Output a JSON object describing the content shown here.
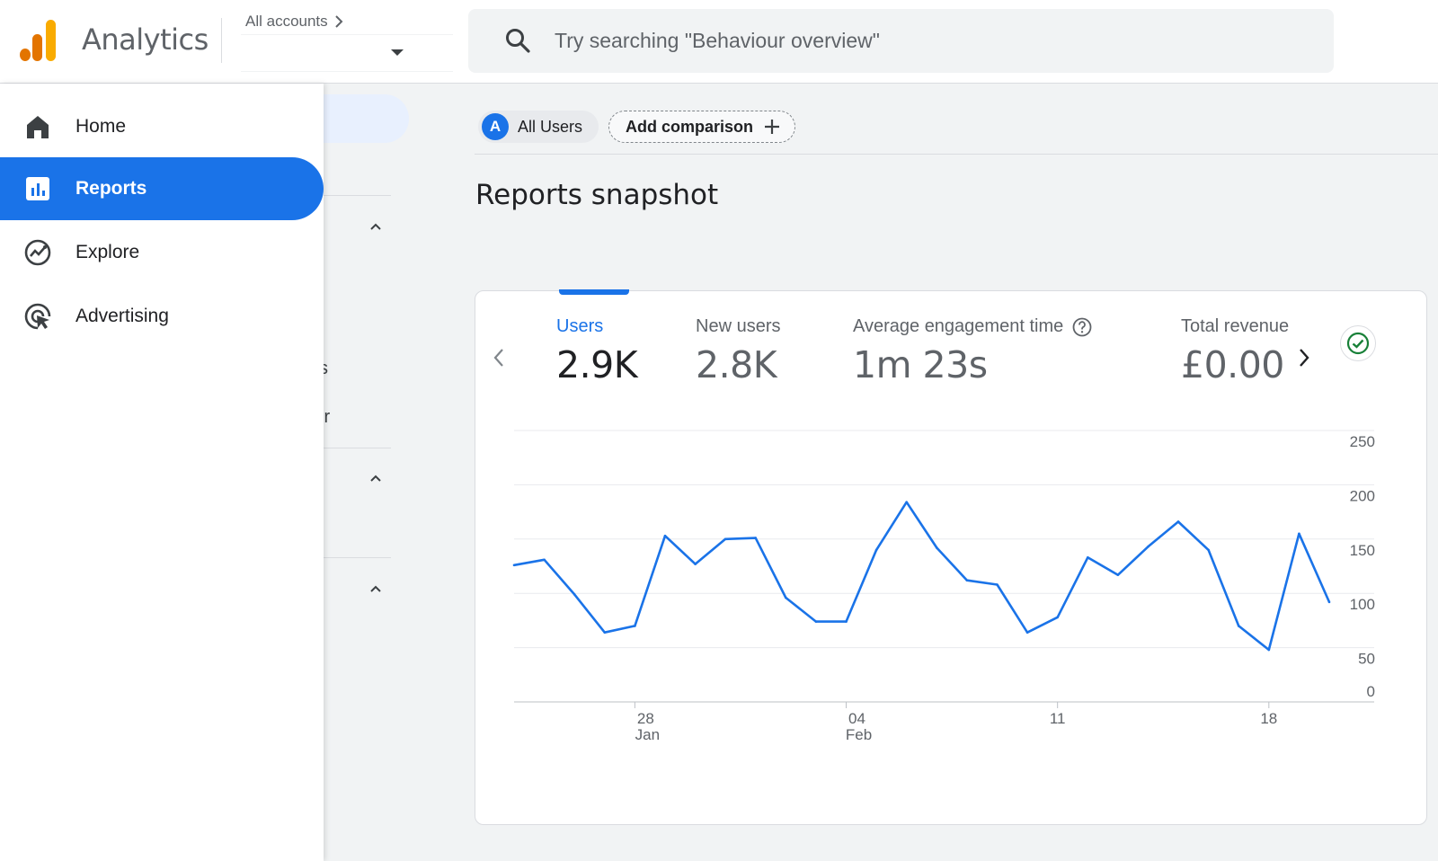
{
  "header": {
    "app_title": "Analytics",
    "accounts_label": "All accounts",
    "search_placeholder": "Try searching \"Behaviour overview\""
  },
  "drawer": {
    "items": [
      {
        "label": "Home",
        "icon": "home-icon"
      },
      {
        "label": "Reports",
        "icon": "bar-chart-icon",
        "active": true
      },
      {
        "label": "Explore",
        "icon": "explore-icon"
      },
      {
        "label": "Advertising",
        "icon": "advertising-icon"
      }
    ]
  },
  "subnav": {
    "fragments": [
      "s",
      "ır"
    ]
  },
  "main": {
    "segment_badge": "A",
    "segment_label": "All Users",
    "add_comparison_label": "Add comparison",
    "title": "Reports snapshot"
  },
  "metrics": [
    {
      "label": "Users",
      "value": "2.9K",
      "active": true
    },
    {
      "label": "New users",
      "value": "2.8K"
    },
    {
      "label": "Average engagement time",
      "value": "1m 23s",
      "help": true
    },
    {
      "label": "Total revenue",
      "value": "£0.00"
    }
  ],
  "colors": {
    "accent": "#1a73e8",
    "line": "#1a73e8",
    "success": "#188038"
  },
  "chart_data": {
    "type": "line",
    "series": [
      {
        "values": [
          126,
          131,
          99,
          64,
          70,
          153,
          127,
          150,
          151,
          96,
          74,
          74,
          140,
          184,
          142,
          112,
          108,
          64,
          78,
          133,
          117,
          143,
          166,
          140,
          70,
          48,
          155,
          92
        ]
      }
    ],
    "x_tick_labels": [
      {
        "index": 4,
        "day": "28",
        "month": "Jan"
      },
      {
        "index": 11,
        "day": "04",
        "month": "Feb"
      },
      {
        "index": 18,
        "day": "11",
        "month": ""
      },
      {
        "index": 25,
        "day": "18",
        "month": ""
      }
    ],
    "y_ticks": [
      0,
      50,
      100,
      150,
      200,
      250
    ],
    "ylim": [
      0,
      250
    ],
    "grid": true
  }
}
